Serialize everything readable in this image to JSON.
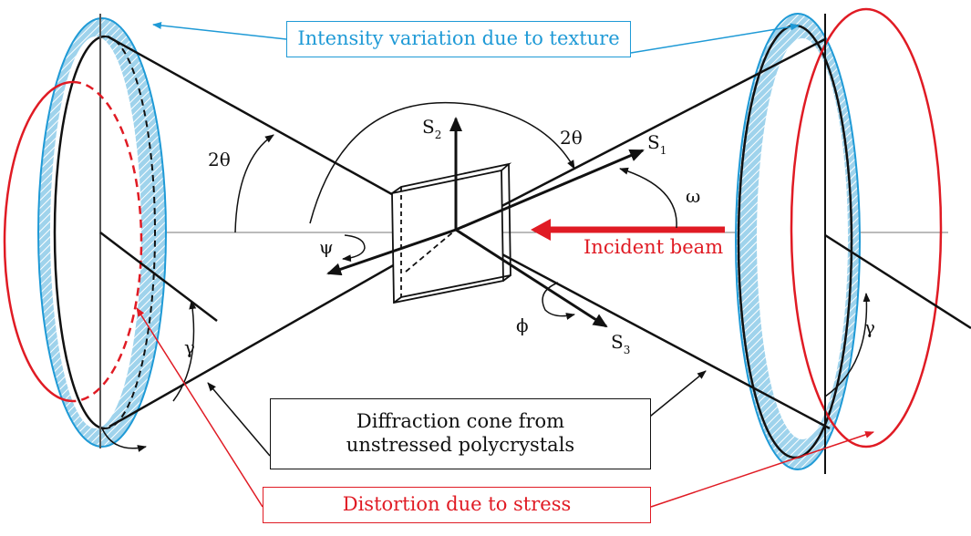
{
  "callouts": {
    "texture": "Intensity variation due to texture",
    "cone_line1": "Diffraction cone from",
    "cone_line2": "unstressed polycrystals",
    "stress": "Distortion due to stress",
    "incident_beam": "Incident beam"
  },
  "labels": {
    "two_theta": "2θ",
    "gamma": "γ",
    "omega": "ω",
    "psi": "ψ",
    "phi": "ϕ",
    "s_letter": "S",
    "s1_sub": "1",
    "s2_sub": "2",
    "s3_sub": "3"
  },
  "colors": {
    "texture": "#1f9ad6",
    "texture_fill": "#9fd3ec",
    "stress": "#e01b24",
    "line": "#111111"
  }
}
